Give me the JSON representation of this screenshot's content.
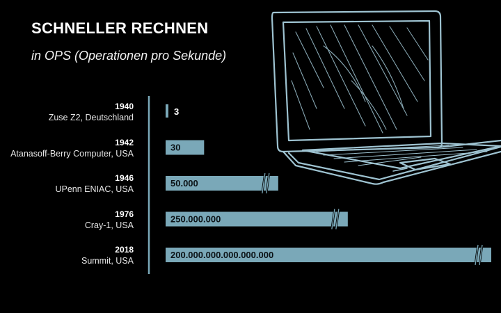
{
  "title": "SCHNELLER RECHNEN",
  "subtitle": "in OPS (Operationen pro Sekunde)",
  "colors": {
    "background": "#000000",
    "bar": "#7aa8b8",
    "axis": "#7aa8b8",
    "sketch": "#9ec3d1",
    "text": "#ffffff"
  },
  "illustration": "laptop-sketch",
  "chart_data": {
    "type": "bar",
    "orientation": "horizontal",
    "scale": "broken",
    "title": "SCHNELLER RECHNEN",
    "subtitle": "in OPS (Operationen pro Sekunde)",
    "categories": [
      {
        "year": "1940",
        "name": "Zuse Z2, Deutschland"
      },
      {
        "year": "1942",
        "name": "Atanasoff-Berry Computer, USA"
      },
      {
        "year": "1946",
        "name": "UPenn ENIAC, USA"
      },
      {
        "year": "1976",
        "name": "Cray-1, USA"
      },
      {
        "year": "2018",
        "name": "Summit, USA"
      }
    ],
    "values": [
      3,
      30,
      50000,
      250000000,
      200000000000000000
    ],
    "value_labels": [
      "3",
      "30",
      "50.000",
      "250.000.000",
      "200.000.000.000.000.000"
    ],
    "axis_breaks": [
      false,
      false,
      true,
      true,
      true
    ],
    "grid": false,
    "legend": "none"
  }
}
